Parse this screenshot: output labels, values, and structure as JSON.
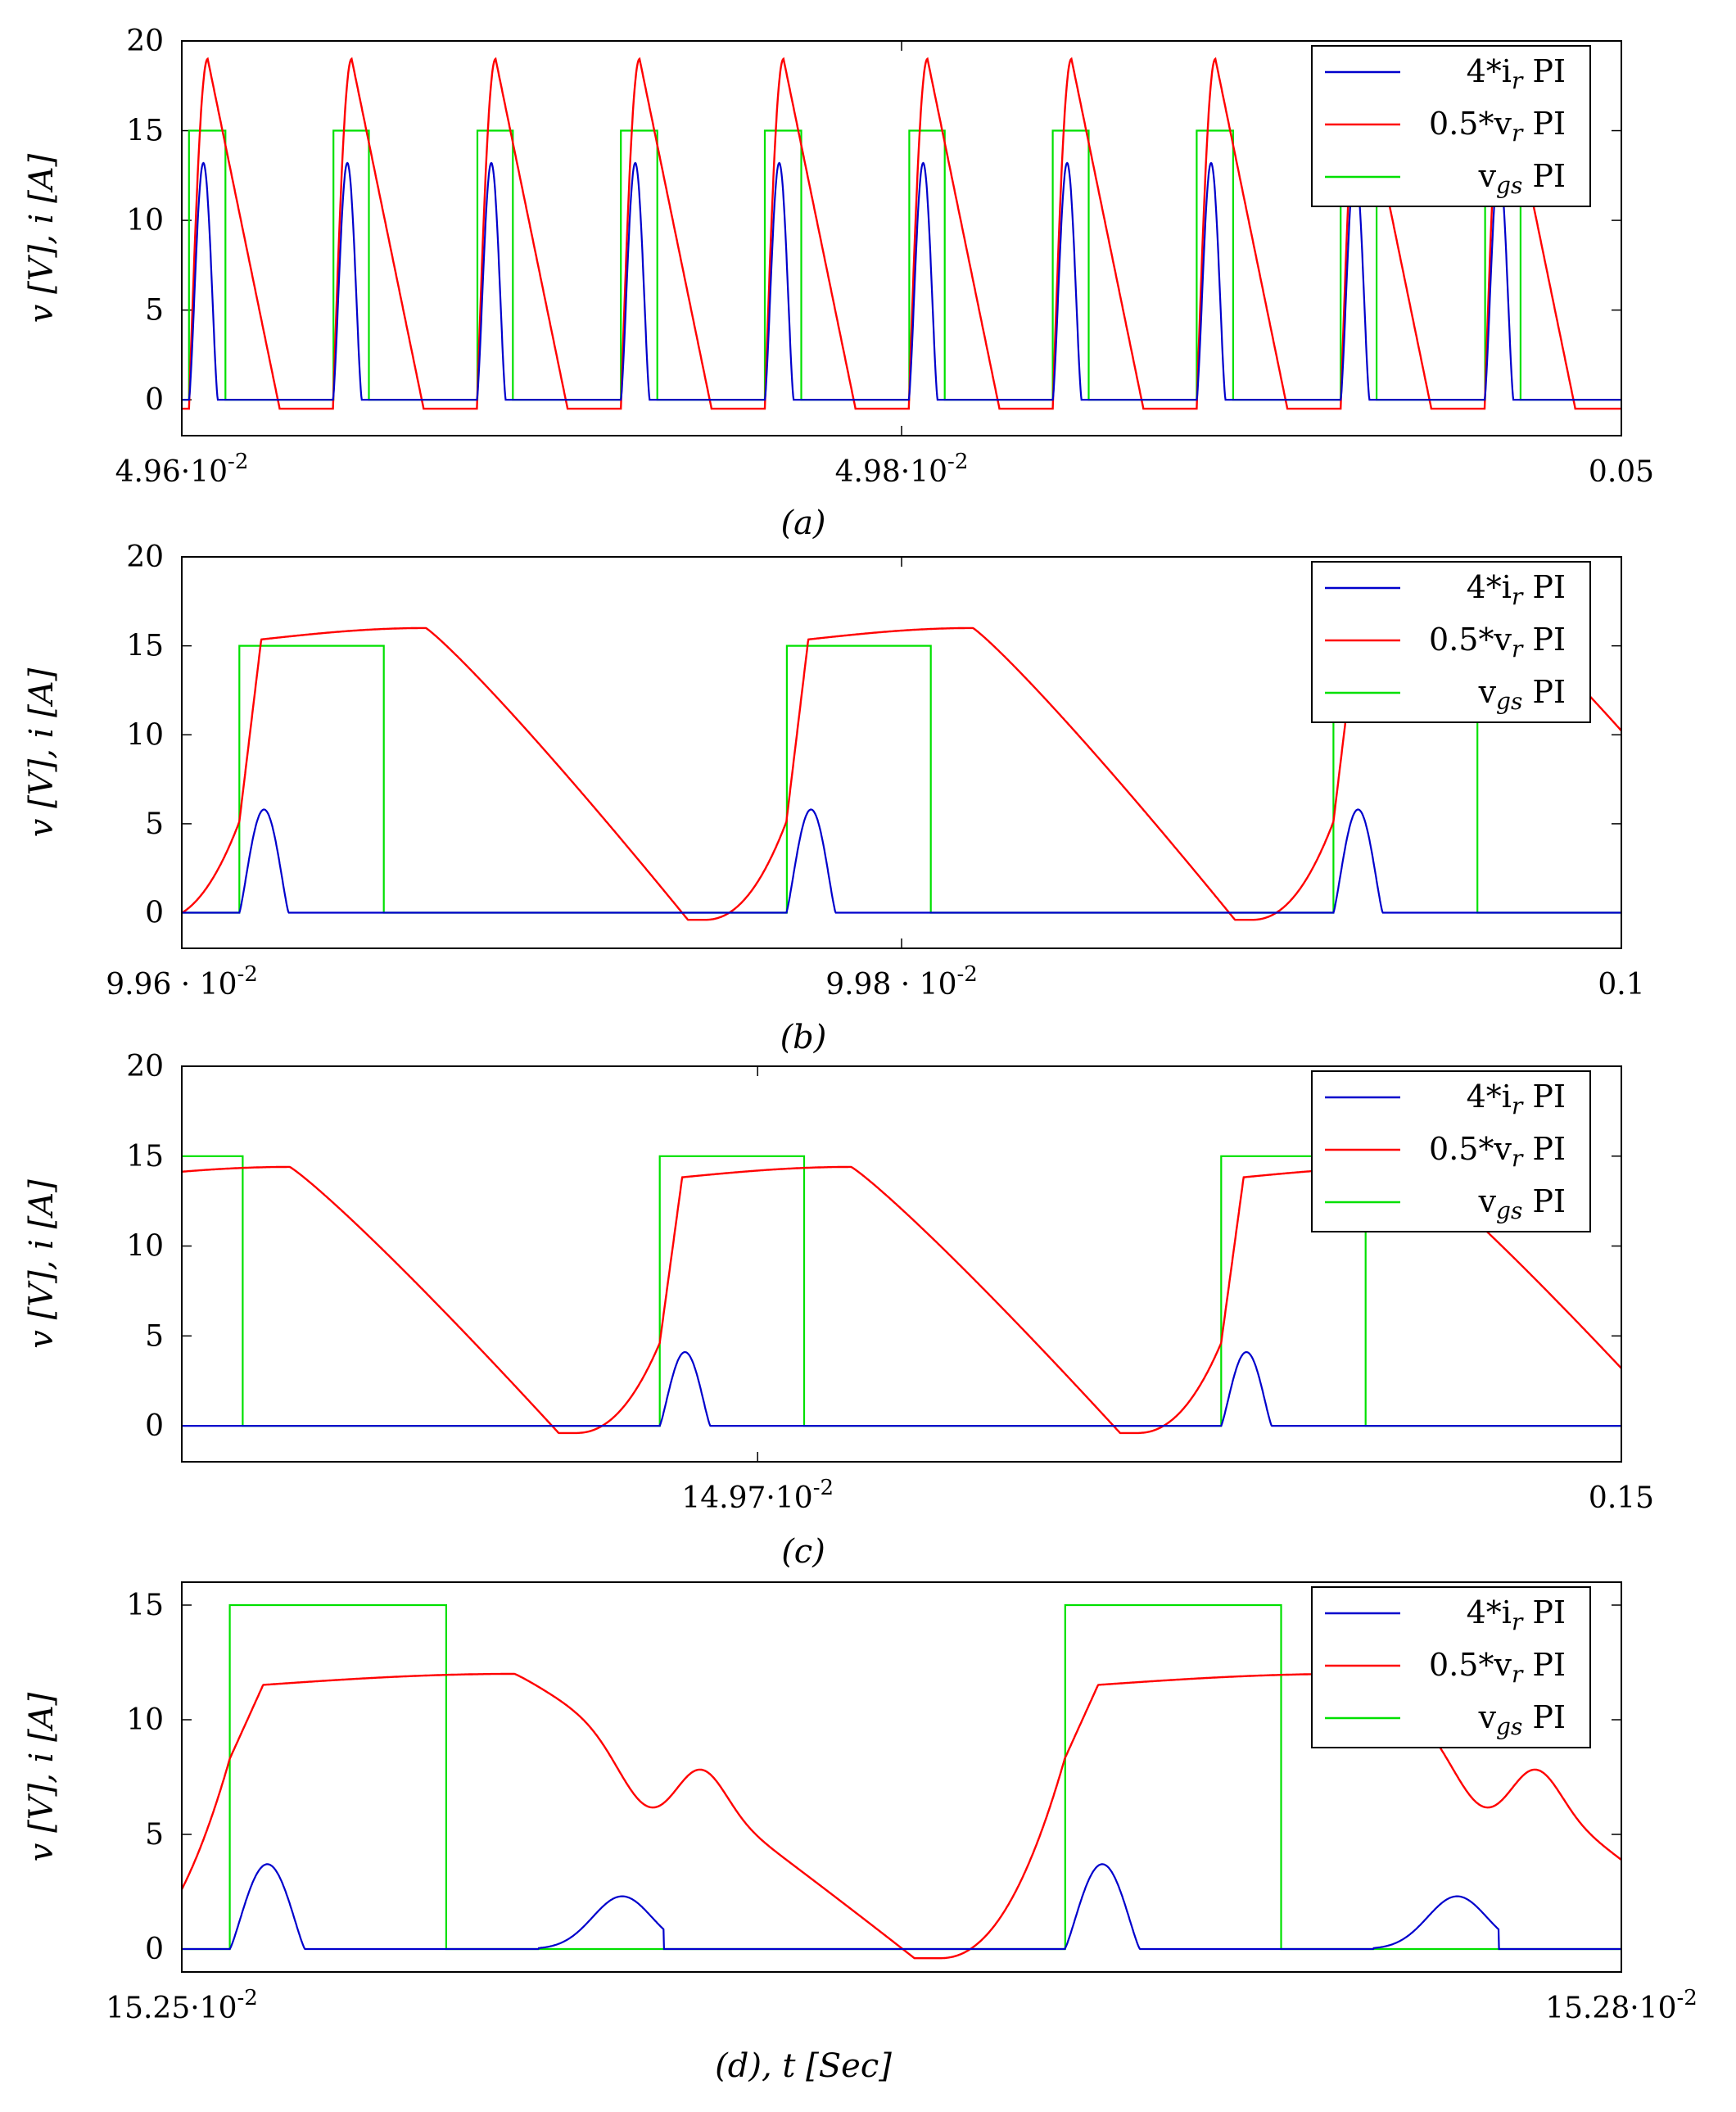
{
  "figure": {
    "description_labels": {
      "ylabel": "v [V], i [A]"
    }
  },
  "chart_data": [
    {
      "type": "line",
      "panel": "a",
      "caption": "(a)",
      "ylabel": "v [V], i [A]",
      "xlabel": "",
      "xlim": [
        0.0496,
        0.05
      ],
      "ylim": [
        -2,
        20
      ],
      "yticks": [
        0,
        5,
        10,
        15,
        20
      ],
      "xticks": [
        {
          "value": 0.0496,
          "label": "4.96·10^-2"
        },
        {
          "value": 0.0498,
          "label": "4.98·10^-2"
        },
        {
          "value": 0.05,
          "label": "0.05"
        }
      ],
      "legend": {
        "position": "top-right",
        "entries": [
          "4*i_r PI",
          "0.5*v_r PI",
          "v_gs PI"
        ]
      },
      "series": [
        {
          "name": "4*i_r PI",
          "color": "#0000cc",
          "peak": 13.2
        },
        {
          "name": "0.5*v_r PI",
          "color": "#ff0000",
          "peak": 19.0,
          "low": -0.5
        },
        {
          "name": "v_gs PI",
          "color": "#00e000",
          "high": 15,
          "low": 0
        }
      ],
      "waveform": {
        "period": 4e-05,
        "first_on": 0.049602,
        "on_duration": 1e-05,
        "vr_shape": "triangle"
      }
    },
    {
      "type": "line",
      "panel": "b",
      "caption": "(b)",
      "ylabel": "v [V], i [A]",
      "xlabel": "",
      "xlim": [
        0.0996,
        0.1
      ],
      "ylim": [
        -2,
        20
      ],
      "yticks": [
        0,
        5,
        10,
        15,
        20
      ],
      "xticks": [
        {
          "value": 0.0996,
          "label": "9.96 · 10^-2"
        },
        {
          "value": 0.0998,
          "label": "9.98 · 10^-2"
        },
        {
          "value": 0.1,
          "label": "0.1"
        }
      ],
      "legend": {
        "position": "top-right",
        "entries": [
          "4*i_r PI",
          "0.5*v_r PI",
          "v_gs PI"
        ]
      },
      "series": [
        {
          "name": "4*i_r PI",
          "color": "#0000cc",
          "peak": 5.8
        },
        {
          "name": "0.5*v_r PI",
          "color": "#ff0000",
          "peak": 16.0,
          "low": -0.4
        },
        {
          "name": "v_gs PI",
          "color": "#00e000",
          "high": 15,
          "low": 0
        }
      ],
      "waveform": {
        "period": 0.000152,
        "first_on": 0.099616,
        "on_duration": 4e-05,
        "vr_shape": "resonant"
      }
    },
    {
      "type": "line",
      "panel": "c",
      "caption": "(c)",
      "ylabel": "v [V], i [A]",
      "xlabel": "",
      "xlim": [
        0.1495,
        0.15
      ],
      "ylim": [
        -2,
        20
      ],
      "yticks": [
        0,
        5,
        10,
        15,
        20
      ],
      "xticks": [
        {
          "value": 0.1497,
          "label": "14.97·10^-2"
        },
        {
          "value": 0.15,
          "label": "0.15"
        }
      ],
      "legend": {
        "position": "top-right",
        "entries": [
          "4*i_r PI",
          "0.5*v_r PI",
          "v_gs PI"
        ]
      },
      "series": [
        {
          "name": "4*i_r PI",
          "color": "#0000cc",
          "peak": 4.1
        },
        {
          "name": "0.5*v_r PI",
          "color": "#ff0000",
          "peak": 14.4,
          "low": -0.4
        },
        {
          "name": "v_gs PI",
          "color": "#00e000",
          "high": 15,
          "low": 0
        }
      ],
      "waveform": {
        "period": 0.000195,
        "first_on": 0.149666,
        "on_duration": 5e-05,
        "vr_shape": "resonant"
      }
    },
    {
      "type": "line",
      "panel": "d",
      "caption": "(d), t [Sec]",
      "ylabel": "v [V], i [A]",
      "xlabel": "t [Sec]",
      "xlim": [
        0.1525,
        0.1528
      ],
      "ylim": [
        -1,
        16
      ],
      "yticks": [
        0,
        5,
        10,
        15
      ],
      "xticks": [
        {
          "value": 0.1525,
          "label": "15.25·10^-2"
        },
        {
          "value": 0.1528,
          "label": "15.28·10^-2"
        }
      ],
      "legend": {
        "position": "top-right",
        "entries": [
          "4*i_r PI",
          "0.5*v_r PI",
          "v_gs PI"
        ]
      },
      "series": [
        {
          "name": "4*i_r PI",
          "color": "#0000cc",
          "peak": 3.7,
          "second_peak": 2.3
        },
        {
          "name": "0.5*v_r PI",
          "color": "#ff0000",
          "peak": 12.0,
          "low": -0.4
        },
        {
          "name": "v_gs PI",
          "color": "#00e000",
          "high": 15,
          "low": 0
        }
      ],
      "waveform": {
        "period": 0.000174,
        "first_on": 0.15251,
        "on_duration": 4.5e-05,
        "vr_shape": "double-hump"
      }
    }
  ]
}
